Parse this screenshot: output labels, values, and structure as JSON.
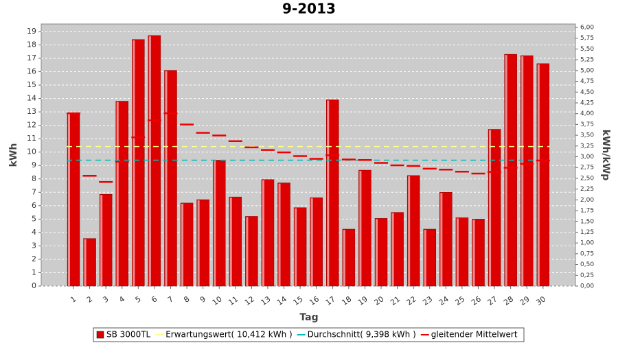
{
  "chart_data": {
    "type": "bar",
    "title": "9-2013",
    "x_label": "Tag",
    "y_label": "kWh",
    "y2_label": "kWh/kWp",
    "categories": [
      "1",
      "2",
      "3",
      "4",
      "5",
      "6",
      "7",
      "8",
      "9",
      "10",
      "11",
      "12",
      "13",
      "14",
      "15",
      "16",
      "17",
      "18",
      "19",
      "20",
      "21",
      "22",
      "23",
      "24",
      "25",
      "26",
      "27",
      "28",
      "29",
      "30"
    ],
    "series": [
      {
        "name": "SB 3000TL",
        "color": "#dd0000",
        "values": [
          12.9,
          3.55,
          6.85,
          13.8,
          18.4,
          18.7,
          16.1,
          6.2,
          6.45,
          9.4,
          6.65,
          5.2,
          7.95,
          7.7,
          5.85,
          6.6,
          13.9,
          4.25,
          8.65,
          5.05,
          5.5,
          8.25,
          4.25,
          7.0,
          5.1,
          5.0,
          11.7,
          17.3,
          17.2,
          16.6
        ]
      },
      {
        "name": "Erwartungswert( 10,412 kWh )",
        "color": "#ffff88",
        "value": 10.412
      },
      {
        "name": "Durchschnitt( 9,398 kWh )",
        "color": "#00bbbb",
        "value": 9.398
      },
      {
        "name": "gleitender Mittelwert",
        "color": "#ee0000",
        "values": [
          12.9,
          8.23,
          7.77,
          9.28,
          11.1,
          12.37,
          12.9,
          12.06,
          11.44,
          11.24,
          10.82,
          10.35,
          10.16,
          9.98,
          9.7,
          9.5,
          9.76,
          9.45,
          9.41,
          9.19,
          9.01,
          8.97,
          8.76,
          8.69,
          8.54,
          8.4,
          8.52,
          8.83,
          9.12,
          9.37
        ]
      }
    ],
    "ylim": [
      0,
      19.56
    ],
    "yticks": [
      0,
      1,
      2,
      3,
      4,
      5,
      6,
      7,
      8,
      9,
      10,
      11,
      12,
      13,
      14,
      15,
      16,
      17,
      18,
      19
    ],
    "y2lim": [
      0,
      6.08
    ],
    "y2ticks": [
      {
        "value": 0,
        "label": "0,00"
      },
      {
        "value": 0.25,
        "label": "0,25"
      },
      {
        "value": 0.5,
        "label": "0,50"
      },
      {
        "value": 0.75,
        "label": "0,75"
      },
      {
        "value": 1,
        "label": "1,00"
      },
      {
        "value": 1.25,
        "label": "1,25"
      },
      {
        "value": 1.5,
        "label": "1,50"
      },
      {
        "value": 1.75,
        "label": "1,75"
      },
      {
        "value": 2,
        "label": "2,00"
      },
      {
        "value": 2.25,
        "label": "2,25"
      },
      {
        "value": 2.5,
        "label": "2,50"
      },
      {
        "value": 2.75,
        "label": "2,75"
      },
      {
        "value": 3,
        "label": "3,00"
      },
      {
        "value": 3.25,
        "label": "3,25"
      },
      {
        "value": 3.5,
        "label": "3,50"
      },
      {
        "value": 3.75,
        "label": "3,75"
      },
      {
        "value": 4,
        "label": "4,00"
      },
      {
        "value": 4.25,
        "label": "4,25"
      },
      {
        "value": 4.5,
        "label": "4,50"
      },
      {
        "value": 4.75,
        "label": "4,75"
      },
      {
        "value": 5,
        "label": "5,00"
      },
      {
        "value": 5.25,
        "label": "5,25"
      },
      {
        "value": 5.5,
        "label": "5,50"
      },
      {
        "value": 5.75,
        "label": "5,75"
      },
      {
        "value": 6,
        "label": "6,00"
      }
    ],
    "grid": true
  }
}
